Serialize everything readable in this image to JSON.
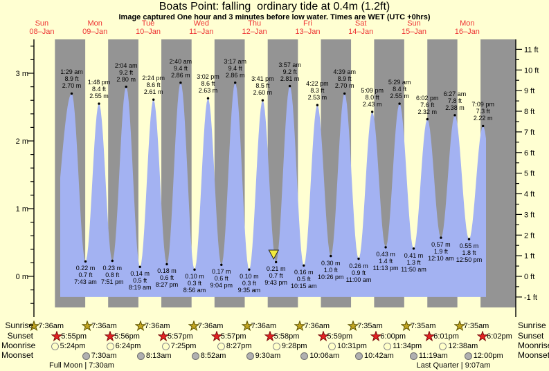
{
  "title": "Boats Point: falling  ordinary tide at 0.4m (1.2ft)",
  "subtitle": "Image captured One hour and 3 minutes before low water. Times are WET (UTC +0hrs)",
  "astro_row_labels": {
    "sunrise": "Sunrise",
    "sunset": "Sunset",
    "moonrise": "Moonrise",
    "moonset": "Moonset"
  },
  "moon_phase_notes": {
    "full_moon": "Full Moon | 7:30am",
    "last_quarter": "Last Quarter | 9:07am"
  },
  "colors": {
    "page_background": "#ffffd2",
    "night_band": "#949494",
    "daylight_band": "#ffffd2",
    "tide_fill": "#a3b2f2",
    "day_label_red": "#ee3333",
    "marker_yellow": "#f2ea3c",
    "sunrise_star": "#c2a520",
    "sunrise_star_edge": "#5c5200",
    "sunset_star": "#e32222",
    "sunset_star_edge": "#7a0c0c",
    "moonrise_circle": "#ffffc8",
    "moonrise_circle_edge": "#8a8a8a",
    "moonset_circle": "#b0b0b0",
    "moonset_circle_edge": "#6e6e6e"
  },
  "chart_data": {
    "type": "area",
    "title": "Boats Point: falling ordinary tide at 0.4m (1.2ft)",
    "subtitle": "Image captured One hour and 3 minutes before low water. Times are WET (UTC +0hrs)",
    "y_axis_left": {
      "unit": "m",
      "tick_labels": [
        "0 m",
        "1 m",
        "2 m",
        "3 m"
      ]
    },
    "y_axis_right": {
      "unit": "ft",
      "tick_labels": [
        "-1 ft",
        "0 ft",
        "1 ft",
        "2 ft",
        "3 ft",
        "4 ft",
        "5 ft",
        "6 ft",
        "7 ft",
        "8 ft",
        "9 ft",
        "10 ft",
        "11 ft"
      ]
    },
    "x_axis_days": [
      {
        "name": "Sun",
        "date": "08–Jan",
        "sunrise": "7:36am",
        "sunset": "5:55pm",
        "moonrise": "5:24pm",
        "moonset": null
      },
      {
        "name": "Mon",
        "date": "09–Jan",
        "sunrise": "7:36am",
        "sunset": "5:56pm",
        "moonrise": "6:24pm",
        "moonset": "7:30am"
      },
      {
        "name": "Tue",
        "date": "10–Jan",
        "sunrise": "7:36am",
        "sunset": "5:57pm",
        "moonrise": "7:25pm",
        "moonset": "8:13am"
      },
      {
        "name": "Wed",
        "date": "11–Jan",
        "sunrise": "7:36am",
        "sunset": "5:57pm",
        "moonrise": "8:27pm",
        "moonset": "8:52am"
      },
      {
        "name": "Thu",
        "date": "12–Jan",
        "sunrise": "7:36am",
        "sunset": "5:58pm",
        "moonrise": "9:28pm",
        "moonset": "9:30am"
      },
      {
        "name": "Fri",
        "date": "13–Jan",
        "sunrise": "7:36am",
        "sunset": "5:59pm",
        "moonrise": "10:31pm",
        "moonset": "10:06am"
      },
      {
        "name": "Sat",
        "date": "14–Jan",
        "sunrise": "7:35am",
        "sunset": "6:00pm",
        "moonrise": "11:34pm",
        "moonset": "10:42am"
      },
      {
        "name": "Sun",
        "date": "15–Jan",
        "sunrise": "7:35am",
        "sunset": "6:01pm",
        "moonrise": null,
        "moonset": "11:19am"
      },
      {
        "name": "Mon",
        "date": "16–Jan",
        "sunrise": "7:35am",
        "sunset": "6:02pm",
        "moonrise": "12:38am",
        "moonset": "12:00pm"
      }
    ],
    "extremes": [
      {
        "kind": "high",
        "time": "1:29 am",
        "ft": "8.9 ft",
        "m": "2.70 m",
        "t": 25.48,
        "h": 2.7
      },
      {
        "kind": "low",
        "m": "0.22 m",
        "ft": "0.7 ft",
        "time": "7:43 am",
        "t": 31.72,
        "h": 0.22
      },
      {
        "kind": "high",
        "time": "1:48 pm",
        "ft": "8.4 ft",
        "m": "2.55 m",
        "t": 37.8,
        "h": 2.55
      },
      {
        "kind": "low",
        "m": "0.23 m",
        "ft": "0.8 ft",
        "time": "7:51 pm",
        "t": 43.85,
        "h": 0.23
      },
      {
        "kind": "high",
        "time": "2:04 am",
        "ft": "9.2 ft",
        "m": "2.80 m",
        "t": 50.07,
        "h": 2.8
      },
      {
        "kind": "low",
        "m": "0.14 m",
        "ft": "0.5 ft",
        "time": "8:19 am",
        "t": 56.32,
        "h": 0.14
      },
      {
        "kind": "high",
        "time": "2:24 pm",
        "ft": "8.6 ft",
        "m": "2.61 m",
        "t": 62.4,
        "h": 2.61
      },
      {
        "kind": "low",
        "m": "0.18 m",
        "ft": "0.6 ft",
        "time": "8:27 pm",
        "t": 68.45,
        "h": 0.18
      },
      {
        "kind": "high",
        "time": "2:40 am",
        "ft": "9.4 ft",
        "m": "2.86 m",
        "t": 74.67,
        "h": 2.86
      },
      {
        "kind": "low",
        "m": "0.10 m",
        "ft": "0.3 ft",
        "time": "8:56 am",
        "t": 80.93,
        "h": 0.1
      },
      {
        "kind": "high",
        "time": "3:02 pm",
        "ft": "8.6 ft",
        "m": "2.63 m",
        "t": 87.03,
        "h": 2.63
      },
      {
        "kind": "low",
        "m": "0.17 m",
        "ft": "0.6 ft",
        "time": "9:04 pm",
        "t": 93.07,
        "h": 0.17
      },
      {
        "kind": "high",
        "time": "3:17 am",
        "ft": "9.4 ft",
        "m": "2.86 m",
        "t": 99.28,
        "h": 2.86
      },
      {
        "kind": "low",
        "m": "0.10 m",
        "ft": "0.3 ft",
        "time": "9:35 am",
        "t": 105.58,
        "h": 0.1
      },
      {
        "kind": "high",
        "time": "3:41 pm",
        "ft": "8.5 ft",
        "m": "2.60 m",
        "t": 111.68,
        "h": 2.6
      },
      {
        "kind": "low",
        "m": "0.21 m",
        "ft": "0.7 ft",
        "time": "9:43 pm",
        "t": 117.72,
        "h": 0.21
      },
      {
        "kind": "high",
        "time": "3:57 am",
        "ft": "9.2 ft",
        "m": "2.81 m",
        "t": 123.95,
        "h": 2.81
      },
      {
        "kind": "low",
        "m": "0.16 m",
        "ft": "0.5 ft",
        "time": "10:15 am",
        "t": 130.25,
        "h": 0.16
      },
      {
        "kind": "high",
        "time": "4:22 pm",
        "ft": "8.3 ft",
        "m": "2.53 m",
        "t": 136.37,
        "h": 2.53
      },
      {
        "kind": "low",
        "m": "0.30 m",
        "ft": "1.0 ft",
        "time": "10:26 pm",
        "t": 142.43,
        "h": 0.3
      },
      {
        "kind": "high",
        "time": "4:39 am",
        "ft": "8.9 ft",
        "m": "2.70 m",
        "t": 148.65,
        "h": 2.7
      },
      {
        "kind": "low",
        "m": "0.26 m",
        "ft": "0.9 ft",
        "time": "11:00 am",
        "t": 155.0,
        "h": 0.26
      },
      {
        "kind": "high",
        "time": "5:09 pm",
        "ft": "8.0 ft",
        "m": "2.43 m",
        "t": 161.15,
        "h": 2.43
      },
      {
        "kind": "low",
        "m": "0.43 m",
        "ft": "1.4 ft",
        "time": "11:13 pm",
        "t": 167.22,
        "h": 0.43
      },
      {
        "kind": "high",
        "time": "5:29 am",
        "ft": "8.4 ft",
        "m": "2.55 m",
        "t": 173.48,
        "h": 2.55
      },
      {
        "kind": "low",
        "m": "0.41 m",
        "ft": "1.3 ft",
        "time": "11:50 am",
        "t": 179.83,
        "h": 0.41
      },
      {
        "kind": "high",
        "time": "6:02 pm",
        "ft": "7.6 ft",
        "m": "2.32 m",
        "t": 186.03,
        "h": 2.32
      },
      {
        "kind": "low",
        "m": "0.57 m",
        "ft": "1.9 ft",
        "time": "12:10 am",
        "t": 192.17,
        "h": 0.57
      },
      {
        "kind": "high",
        "time": "6:27 am",
        "ft": "7.8 ft",
        "m": "2.38 m",
        "t": 198.45,
        "h": 2.38
      },
      {
        "kind": "low",
        "m": "0.55 m",
        "ft": "1.8 ft",
        "time": "12:50 pm",
        "t": 204.83,
        "h": 0.55
      },
      {
        "kind": "high",
        "time": "7:09 pm",
        "ft": "7.3 ft",
        "m": "2.22 m",
        "t": 211.15,
        "h": 2.22
      }
    ],
    "current_time_marker": {
      "t_hours": 116.65
    }
  }
}
